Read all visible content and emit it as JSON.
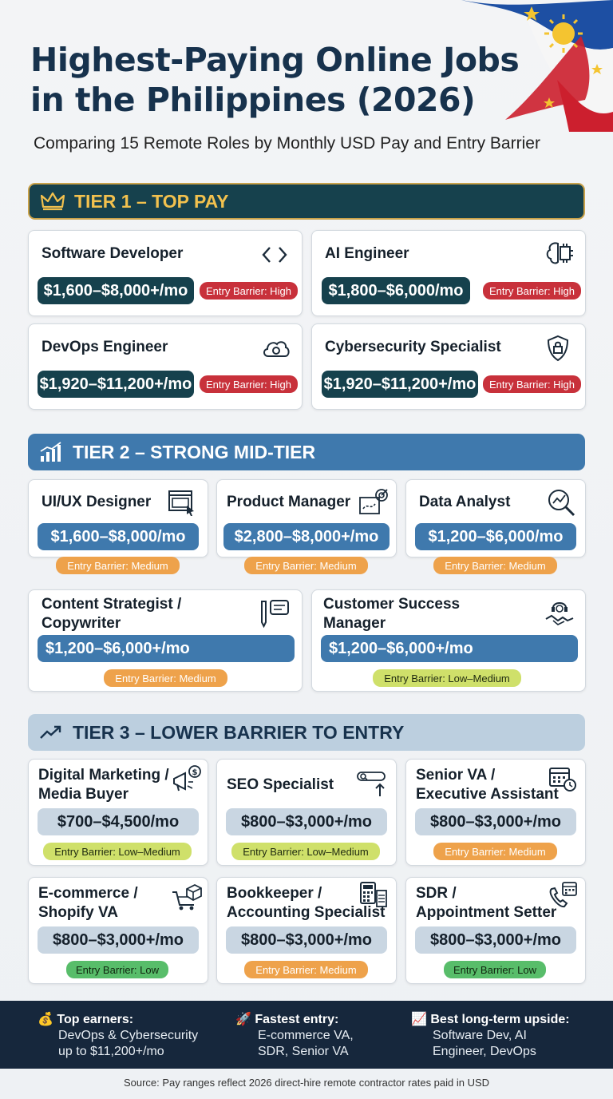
{
  "title_line1": "Highest-Paying Online Jobs",
  "title_line2": "in the Philippines (2026)",
  "subtitle": "Comparing 15 Remote Roles by Monthly USD Pay and Entry Barrier",
  "tiers": {
    "t1": "TIER 1 – TOP PAY",
    "t2": "TIER 2 – STRONG MID-TIER",
    "t3": "TIER 3 – LOWER BARRIER TO ENTRY"
  },
  "colors": {
    "tier1_bg": "#16414d",
    "tier1_text": "#f2c14e",
    "tier2_bg": "#3f79ad",
    "tier3_bg": "#bccfdf",
    "high": "#c8313b",
    "medium": "#eea24b",
    "low_medium": "#cfe06a",
    "low": "#58bd6a"
  },
  "jobs": [
    {
      "name": "Software Developer",
      "pay": "$1,600–$8,000+/mo",
      "barrier": "Entry Barrier: High",
      "icon": "code-icon"
    },
    {
      "name": "AI Engineer",
      "pay": "$1,800–$6,000/mo",
      "barrier": "Entry Barrier: High",
      "icon": "brain-chip-icon"
    },
    {
      "name": "DevOps Engineer",
      "pay": "$1,920–$11,200+/mo",
      "barrier": "Entry Barrier: High",
      "icon": "cloud-gear-icon"
    },
    {
      "name": "Cybersecurity Specialist",
      "pay": "$1,920–$11,200+/mo",
      "barrier": "Entry Barrier: High",
      "icon": "shield-lock-icon"
    },
    {
      "name": "UI/UX Designer",
      "pay": "$1,600–$8,000/mo",
      "barrier": "Entry Barrier: Medium",
      "icon": "design-window-icon"
    },
    {
      "name": "Product Manager",
      "pay": "$2,800–$8,000+/mo",
      "barrier": "Entry Barrier: Medium",
      "icon": "roadmap-target-icon"
    },
    {
      "name": "Data Analyst",
      "pay": "$1,200–$6,000/mo",
      "barrier": "Entry Barrier: Medium",
      "icon": "chart-magnifier-icon"
    },
    {
      "name_l1": "Content Strategist /",
      "name_l2": "Copywriter",
      "pay": "$1,200–$6,000+/mo",
      "barrier": "Entry Barrier: Medium",
      "icon": "pen-speech-icon"
    },
    {
      "name_l1": "Customer Success",
      "name_l2": "Manager",
      "pay": "$1,200–$6,000+/mo",
      "barrier": "Entry Barrier: Low–Medium",
      "icon": "headset-handshake-icon"
    },
    {
      "name_l1": "Digital Marketing /",
      "name_l2": "Media Buyer",
      "pay": "$700–$4,500/mo",
      "barrier": "Entry Barrier: Low–Medium",
      "icon": "megaphone-dollar-icon"
    },
    {
      "name": "SEO Specialist",
      "pay": "$800–$3,000+/mo",
      "barrier": "Entry Barrier: Low–Medium",
      "icon": "search-bar-arrow-icon"
    },
    {
      "name_l1": "Senior VA /",
      "name_l2": "Executive Assistant",
      "pay": "$800–$3,000+/mo",
      "barrier": "Entry Barrier: Medium",
      "icon": "calendar-clock-icon"
    },
    {
      "name_l1": "E-commerce /",
      "name_l2": "Shopify VA",
      "pay": "$800–$3,000+/mo",
      "barrier": "Entry Barrier: Low",
      "icon": "cart-box-icon"
    },
    {
      "name_l1": "Bookkeeper /",
      "name_l2": "Accounting Specialist",
      "pay": "$800–$3,000+/mo",
      "barrier": "Entry Barrier: Medium",
      "icon": "calculator-icon"
    },
    {
      "name_l1": "SDR /",
      "name_l2": "Appointment Setter",
      "pay": "$800–$3,000+/mo",
      "barrier": "Entry Barrier: Low",
      "icon": "phone-calendar-icon"
    }
  ],
  "footer": {
    "col1": {
      "emoji": "💰",
      "head": "Top earners:",
      "l1": "DevOps & Cybersecurity",
      "l2": "up to $11,200+/mo"
    },
    "col2": {
      "emoji": "🚀",
      "head": "Fastest entry:",
      "l1": "E-commerce VA,",
      "l2": "SDR, Senior VA"
    },
    "col3": {
      "emoji": "📈",
      "head": "Best long-term upside:",
      "l1": "Software Dev, AI",
      "l2": "Engineer, DevOps"
    }
  },
  "source": "Source: Pay ranges reflect 2026 direct-hire remote contractor rates paid in USD"
}
